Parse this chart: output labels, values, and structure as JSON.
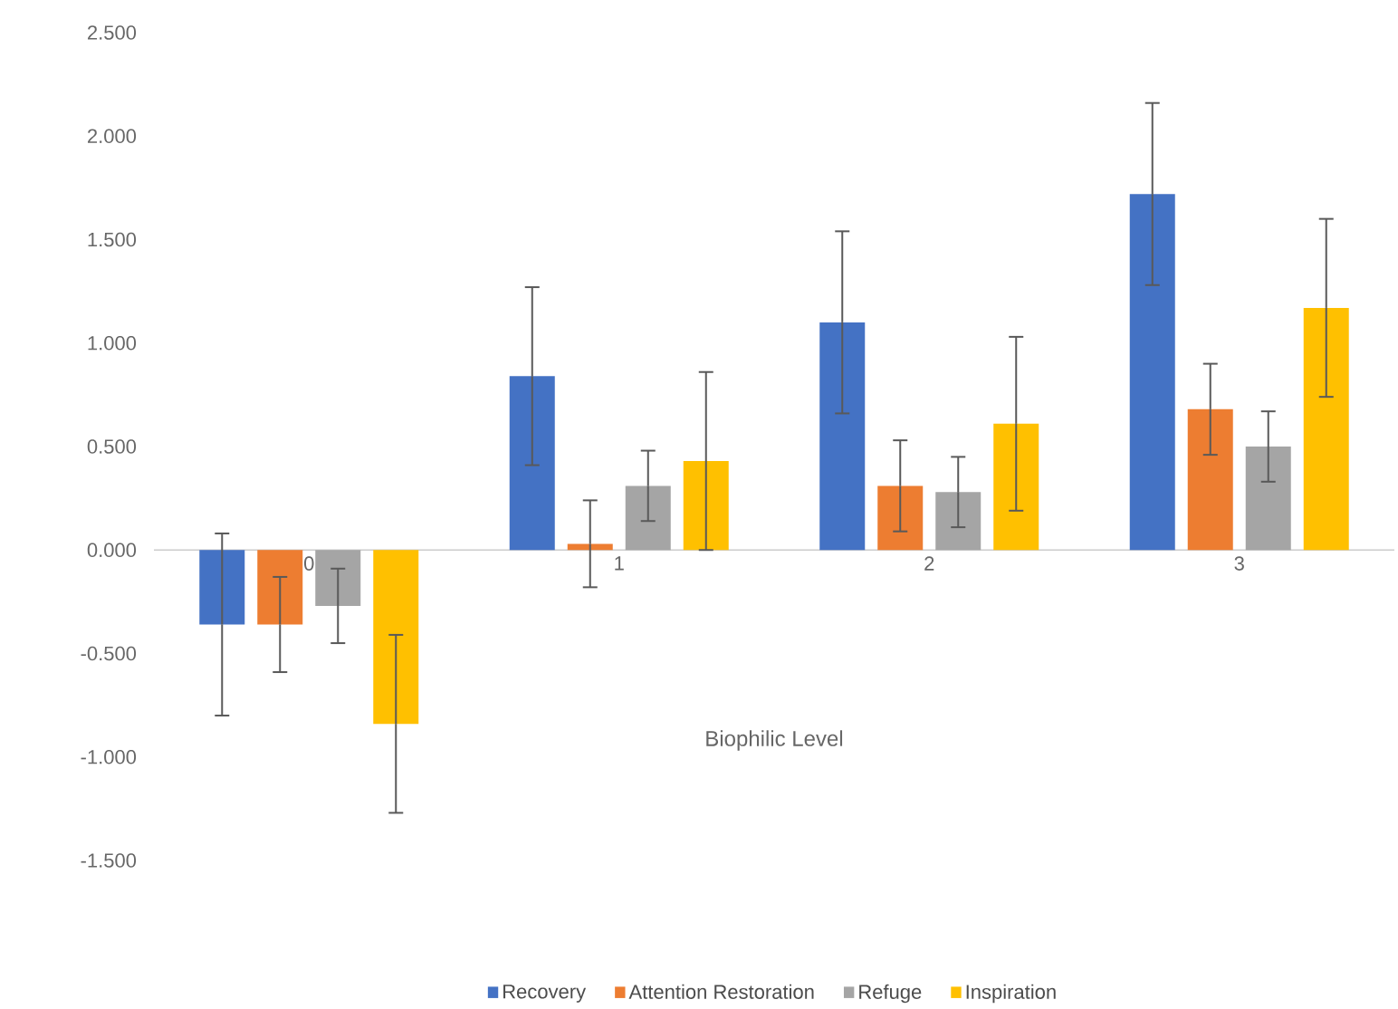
{
  "chart_data": {
    "type": "bar",
    "xlabel": "Biophilic Level",
    "categories": [
      "0",
      "1",
      "2",
      "3"
    ],
    "series": [
      {
        "name": "Recovery",
        "color": "#4472c4",
        "values": [
          -0.36,
          0.84,
          1.1,
          1.72
        ],
        "errors": [
          0.44,
          0.43,
          0.44,
          0.44
        ]
      },
      {
        "name": "Attention Restoration",
        "color": "#ed7d31",
        "values": [
          -0.36,
          0.03,
          0.31,
          0.68
        ],
        "errors": [
          0.23,
          0.21,
          0.22,
          0.22
        ]
      },
      {
        "name": "Refuge",
        "color": "#a5a5a5",
        "values": [
          -0.27,
          0.31,
          0.28,
          0.5
        ],
        "errors": [
          0.18,
          0.17,
          0.17,
          0.17
        ]
      },
      {
        "name": "Inspiration",
        "color": "#ffc000",
        "values": [
          -0.84,
          0.43,
          0.61,
          1.17
        ],
        "errors": [
          0.43,
          0.43,
          0.42,
          0.43
        ]
      }
    ],
    "ylim": [
      -1.5,
      2.5
    ],
    "yticks": [
      {
        "value": -1.5,
        "label": "-1.500"
      },
      {
        "value": -1.0,
        "label": "-1.000"
      },
      {
        "value": -0.5,
        "label": "-0.500"
      },
      {
        "value": 0,
        "label": "0.000"
      },
      {
        "value": 0.5,
        "label": "0.500"
      },
      {
        "value": 1.0,
        "label": "1.000"
      },
      {
        "value": 1.5,
        "label": "1.500"
      },
      {
        "value": 2.0,
        "label": "2.000"
      },
      {
        "value": 2.5,
        "label": "2.500"
      }
    ],
    "grid": false,
    "legend": "bottom"
  }
}
